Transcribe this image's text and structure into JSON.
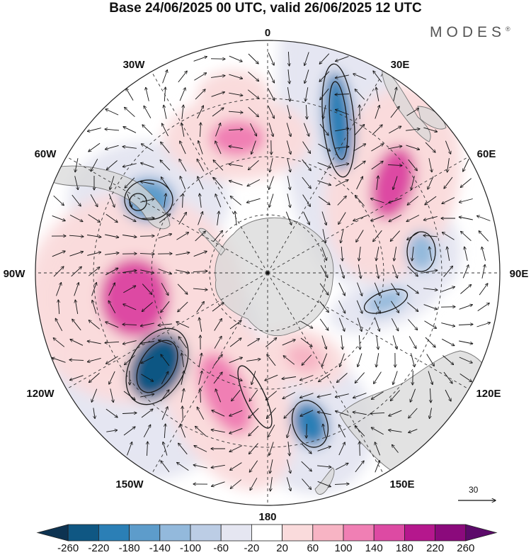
{
  "title": "Base 24/06/2025 00 UTC, valid 26/06/2025 12 UTC",
  "brand": "MODES",
  "brand_mark": "®",
  "longitude_labels": {
    "lon_0": "0",
    "lon_30e": "30E",
    "lon_60e": "60E",
    "lon_90e": "90E",
    "lon_120e": "120E",
    "lon_150e": "150E",
    "lon_180": "180",
    "lon_150w": "150W",
    "lon_120w": "120W",
    "lon_90w": "90W",
    "lon_60w": "60W",
    "lon_30w": "30W"
  },
  "vector_scale_label": "30",
  "colorbar": {
    "labels": [
      "-260",
      "-220",
      "-180",
      "-140",
      "-100",
      "-60",
      "-20",
      "20",
      "60",
      "100",
      "140",
      "180",
      "220",
      "260"
    ],
    "colors": [
      "#0d3351",
      "#0f5783",
      "#2b7fb6",
      "#5d9ccb",
      "#93b9dc",
      "#bccde5",
      "#e5e6f1",
      "#ffffff",
      "#fadbdc",
      "#f7b4c4",
      "#f07fb4",
      "#dd4aa3",
      "#b5178d",
      "#8b0a7c",
      "#5c0a6a"
    ]
  },
  "fields": {
    "palette": {
      "land": "#d8d8d8",
      "coast": "#777777",
      "grid": "#333333"
    },
    "anomaly_centers": [
      {
        "sign": "neg",
        "value": -220,
        "color": "#2b7fb6"
      },
      {
        "sign": "neg",
        "value": -240,
        "color": "#0f5783"
      },
      {
        "sign": "neg",
        "value": -160,
        "color": "#5d9ccb"
      },
      {
        "sign": "neg",
        "value": -180,
        "color": "#2b7fb6"
      },
      {
        "sign": "neg",
        "value": -120,
        "color": "#93b9dc"
      },
      {
        "sign": "neg",
        "value": -100,
        "color": "#93b9dc"
      },
      {
        "sign": "pos",
        "value": 160,
        "color": "#dd4aa3"
      },
      {
        "sign": "pos",
        "value": 150,
        "color": "#dd4aa3"
      },
      {
        "sign": "pos",
        "value": 140,
        "color": "#f07fb4"
      },
      {
        "sign": "pos",
        "value": 120,
        "color": "#f07fb4"
      },
      {
        "sign": "pos",
        "value": 100,
        "color": "#f7b4c4"
      },
      {
        "sign": "pos",
        "value": 60,
        "color": "#fadbdc"
      }
    ]
  }
}
